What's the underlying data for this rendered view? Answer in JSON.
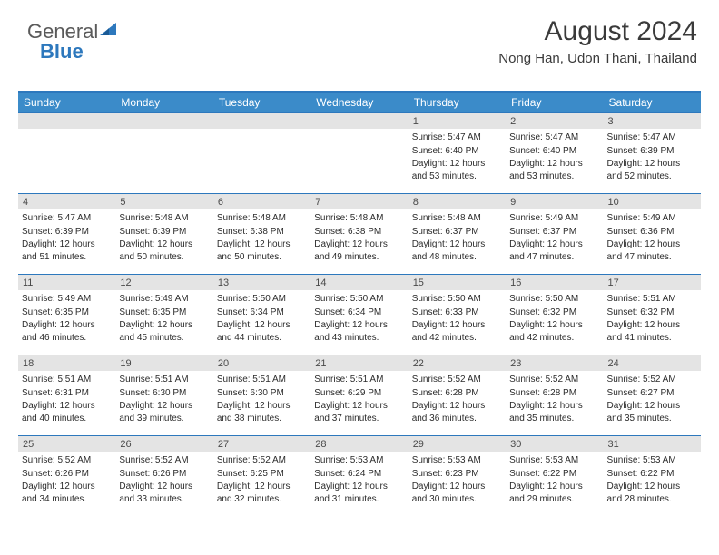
{
  "logo": {
    "part1": "General",
    "part2": "Blue"
  },
  "title": "August 2024",
  "location": "Nong Han, Udon Thani, Thailand",
  "colors": {
    "header_bg": "#3b8bc9",
    "border": "#2d78bd",
    "daynum_bg": "#e4e4e4",
    "text": "#2b2b2b",
    "logo_icon": "#2d78bd"
  },
  "weekdays": [
    "Sunday",
    "Monday",
    "Tuesday",
    "Wednesday",
    "Thursday",
    "Friday",
    "Saturday"
  ],
  "weeks": [
    [
      {
        "n": "",
        "sr": "",
        "ss": "",
        "dl": ""
      },
      {
        "n": "",
        "sr": "",
        "ss": "",
        "dl": ""
      },
      {
        "n": "",
        "sr": "",
        "ss": "",
        "dl": ""
      },
      {
        "n": "",
        "sr": "",
        "ss": "",
        "dl": ""
      },
      {
        "n": "1",
        "sr": "Sunrise: 5:47 AM",
        "ss": "Sunset: 6:40 PM",
        "dl": "Daylight: 12 hours and 53 minutes."
      },
      {
        "n": "2",
        "sr": "Sunrise: 5:47 AM",
        "ss": "Sunset: 6:40 PM",
        "dl": "Daylight: 12 hours and 53 minutes."
      },
      {
        "n": "3",
        "sr": "Sunrise: 5:47 AM",
        "ss": "Sunset: 6:39 PM",
        "dl": "Daylight: 12 hours and 52 minutes."
      }
    ],
    [
      {
        "n": "4",
        "sr": "Sunrise: 5:47 AM",
        "ss": "Sunset: 6:39 PM",
        "dl": "Daylight: 12 hours and 51 minutes."
      },
      {
        "n": "5",
        "sr": "Sunrise: 5:48 AM",
        "ss": "Sunset: 6:39 PM",
        "dl": "Daylight: 12 hours and 50 minutes."
      },
      {
        "n": "6",
        "sr": "Sunrise: 5:48 AM",
        "ss": "Sunset: 6:38 PM",
        "dl": "Daylight: 12 hours and 50 minutes."
      },
      {
        "n": "7",
        "sr": "Sunrise: 5:48 AM",
        "ss": "Sunset: 6:38 PM",
        "dl": "Daylight: 12 hours and 49 minutes."
      },
      {
        "n": "8",
        "sr": "Sunrise: 5:48 AM",
        "ss": "Sunset: 6:37 PM",
        "dl": "Daylight: 12 hours and 48 minutes."
      },
      {
        "n": "9",
        "sr": "Sunrise: 5:49 AM",
        "ss": "Sunset: 6:37 PM",
        "dl": "Daylight: 12 hours and 47 minutes."
      },
      {
        "n": "10",
        "sr": "Sunrise: 5:49 AM",
        "ss": "Sunset: 6:36 PM",
        "dl": "Daylight: 12 hours and 47 minutes."
      }
    ],
    [
      {
        "n": "11",
        "sr": "Sunrise: 5:49 AM",
        "ss": "Sunset: 6:35 PM",
        "dl": "Daylight: 12 hours and 46 minutes."
      },
      {
        "n": "12",
        "sr": "Sunrise: 5:49 AM",
        "ss": "Sunset: 6:35 PM",
        "dl": "Daylight: 12 hours and 45 minutes."
      },
      {
        "n": "13",
        "sr": "Sunrise: 5:50 AM",
        "ss": "Sunset: 6:34 PM",
        "dl": "Daylight: 12 hours and 44 minutes."
      },
      {
        "n": "14",
        "sr": "Sunrise: 5:50 AM",
        "ss": "Sunset: 6:34 PM",
        "dl": "Daylight: 12 hours and 43 minutes."
      },
      {
        "n": "15",
        "sr": "Sunrise: 5:50 AM",
        "ss": "Sunset: 6:33 PM",
        "dl": "Daylight: 12 hours and 42 minutes."
      },
      {
        "n": "16",
        "sr": "Sunrise: 5:50 AM",
        "ss": "Sunset: 6:32 PM",
        "dl": "Daylight: 12 hours and 42 minutes."
      },
      {
        "n": "17",
        "sr": "Sunrise: 5:51 AM",
        "ss": "Sunset: 6:32 PM",
        "dl": "Daylight: 12 hours and 41 minutes."
      }
    ],
    [
      {
        "n": "18",
        "sr": "Sunrise: 5:51 AM",
        "ss": "Sunset: 6:31 PM",
        "dl": "Daylight: 12 hours and 40 minutes."
      },
      {
        "n": "19",
        "sr": "Sunrise: 5:51 AM",
        "ss": "Sunset: 6:30 PM",
        "dl": "Daylight: 12 hours and 39 minutes."
      },
      {
        "n": "20",
        "sr": "Sunrise: 5:51 AM",
        "ss": "Sunset: 6:30 PM",
        "dl": "Daylight: 12 hours and 38 minutes."
      },
      {
        "n": "21",
        "sr": "Sunrise: 5:51 AM",
        "ss": "Sunset: 6:29 PM",
        "dl": "Daylight: 12 hours and 37 minutes."
      },
      {
        "n": "22",
        "sr": "Sunrise: 5:52 AM",
        "ss": "Sunset: 6:28 PM",
        "dl": "Daylight: 12 hours and 36 minutes."
      },
      {
        "n": "23",
        "sr": "Sunrise: 5:52 AM",
        "ss": "Sunset: 6:28 PM",
        "dl": "Daylight: 12 hours and 35 minutes."
      },
      {
        "n": "24",
        "sr": "Sunrise: 5:52 AM",
        "ss": "Sunset: 6:27 PM",
        "dl": "Daylight: 12 hours and 35 minutes."
      }
    ],
    [
      {
        "n": "25",
        "sr": "Sunrise: 5:52 AM",
        "ss": "Sunset: 6:26 PM",
        "dl": "Daylight: 12 hours and 34 minutes."
      },
      {
        "n": "26",
        "sr": "Sunrise: 5:52 AM",
        "ss": "Sunset: 6:26 PM",
        "dl": "Daylight: 12 hours and 33 minutes."
      },
      {
        "n": "27",
        "sr": "Sunrise: 5:52 AM",
        "ss": "Sunset: 6:25 PM",
        "dl": "Daylight: 12 hours and 32 minutes."
      },
      {
        "n": "28",
        "sr": "Sunrise: 5:53 AM",
        "ss": "Sunset: 6:24 PM",
        "dl": "Daylight: 12 hours and 31 minutes."
      },
      {
        "n": "29",
        "sr": "Sunrise: 5:53 AM",
        "ss": "Sunset: 6:23 PM",
        "dl": "Daylight: 12 hours and 30 minutes."
      },
      {
        "n": "30",
        "sr": "Sunrise: 5:53 AM",
        "ss": "Sunset: 6:22 PM",
        "dl": "Daylight: 12 hours and 29 minutes."
      },
      {
        "n": "31",
        "sr": "Sunrise: 5:53 AM",
        "ss": "Sunset: 6:22 PM",
        "dl": "Daylight: 12 hours and 28 minutes."
      }
    ]
  ]
}
